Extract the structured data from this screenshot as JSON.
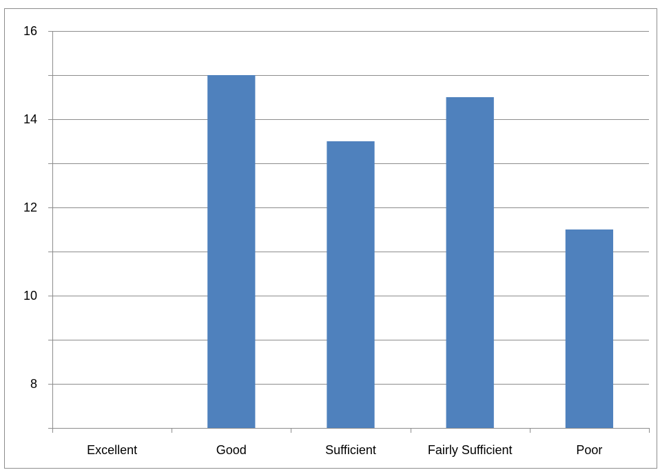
{
  "chart_data": {
    "type": "bar",
    "title": "",
    "xlabel": "",
    "ylabel": "",
    "categories": [
      "Excellent",
      "Good",
      "Sufficient",
      "Fairly Sufficient",
      "Poor"
    ],
    "values": [
      7,
      15,
      13.5,
      14.5,
      11.5
    ],
    "ylim": [
      7,
      16
    ],
    "yticks": [
      8,
      10,
      12,
      14,
      16
    ],
    "minor_gridlines": [
      9,
      11,
      13,
      15
    ],
    "grid": true,
    "legend": "none",
    "bar_color": "#4F81BD"
  }
}
